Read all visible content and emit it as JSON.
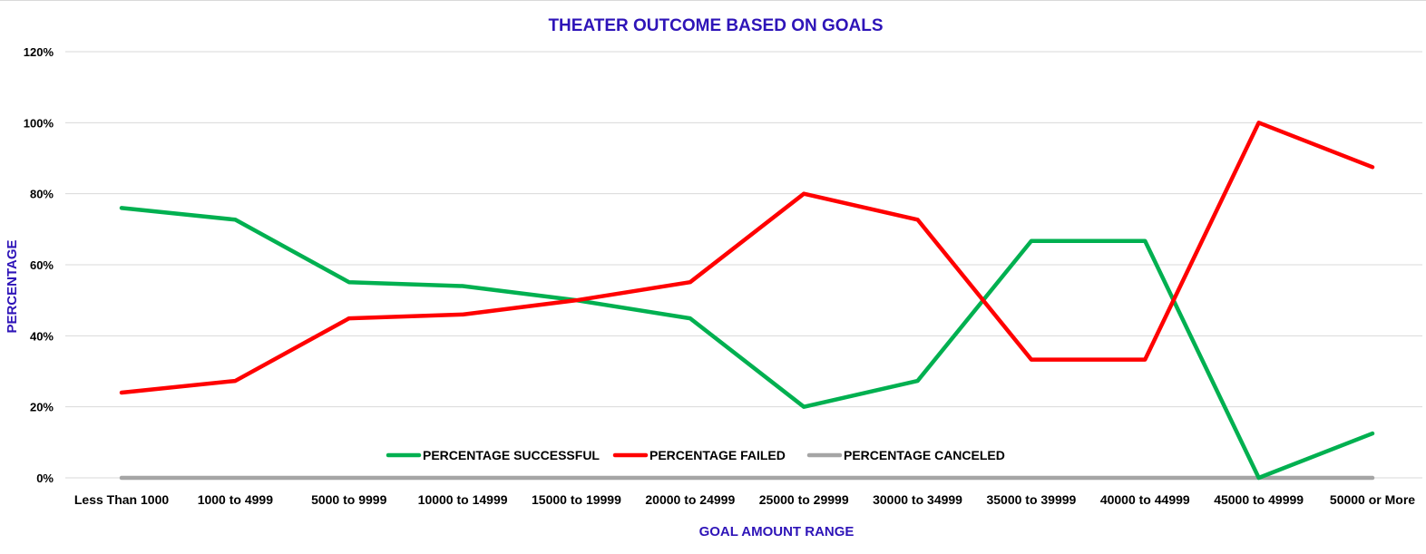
{
  "chart_data": {
    "type": "line",
    "title": "THEATER OUTCOME BASED ON GOALS",
    "xlabel": "GOAL AMOUNT RANGE",
    "ylabel": "PERCENTAGE",
    "categories": [
      "Less Than 1000",
      "1000 to 4999",
      "5000 to 9999",
      "10000 to 14999",
      "15000 to 19999",
      "20000 to 24999",
      "25000 to 29999",
      "30000 to 34999",
      "35000 to 39999",
      "40000 to 44999",
      "45000 to 49999",
      "50000 or More"
    ],
    "ylim": [
      0,
      120
    ],
    "yticks": [
      "0%",
      "20%",
      "40%",
      "60%",
      "80%",
      "100%",
      "120%"
    ],
    "ytick_values": [
      0,
      20,
      40,
      60,
      80,
      100,
      120
    ],
    "grid": true,
    "legend": "bottom",
    "series": [
      {
        "name": "PERCENTAGE SUCCESSFUL",
        "color": "#00b050",
        "values": [
          76,
          72.7,
          55.1,
          54,
          50,
          44.9,
          20,
          27.3,
          66.7,
          66.7,
          0,
          12.5
        ]
      },
      {
        "name": "PERCENTAGE FAILED",
        "color": "#ff0000",
        "values": [
          24,
          27.3,
          44.9,
          46,
          50,
          55.1,
          80,
          72.7,
          33.3,
          33.3,
          100,
          87.5
        ]
      },
      {
        "name": "PERCENTAGE CANCELED",
        "color": "#a5a5a5",
        "values": [
          0,
          0,
          0,
          0,
          0,
          0,
          0,
          0,
          0,
          0,
          0,
          0
        ]
      }
    ]
  },
  "colors": {
    "title": "#2e14b8",
    "axis_title": "#2e14b8",
    "grid": "#d9d9d9"
  }
}
